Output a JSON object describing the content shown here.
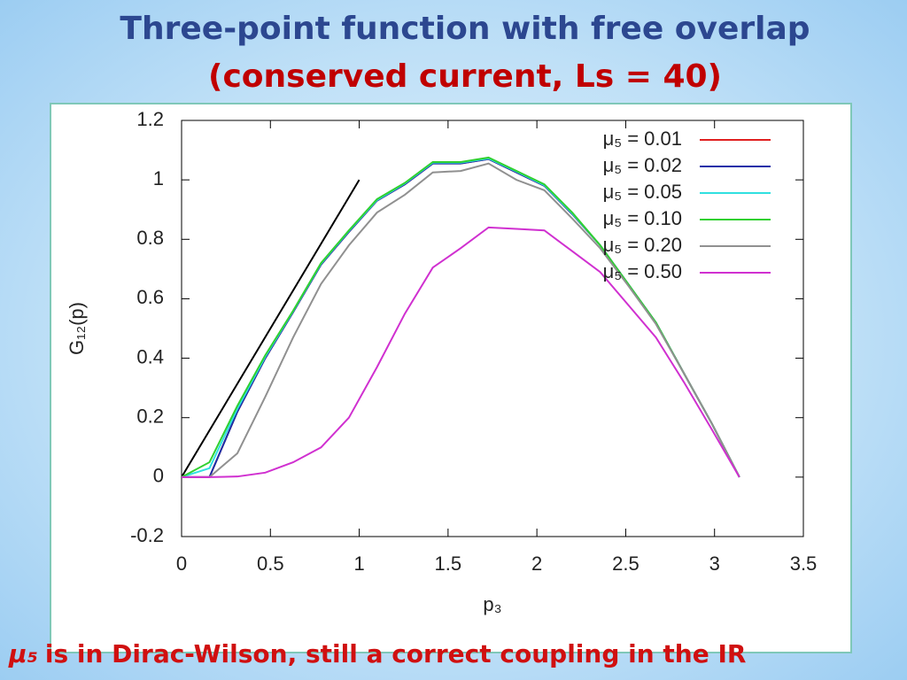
{
  "header": {
    "title": "Three-point function with free overlap",
    "subtitle": "(conserved current, Ls = 40)"
  },
  "chart_data": {
    "type": "line",
    "xlabel": "p₃",
    "ylabel": "G₁₂(p)",
    "xlim": [
      0,
      3.5
    ],
    "ylim": [
      -0.2,
      1.2
    ],
    "xticks": [
      0,
      0.5,
      1,
      1.5,
      2,
      2.5,
      3,
      3.5
    ],
    "yticks": [
      -0.2,
      0,
      0.2,
      0.4,
      0.6,
      0.8,
      1,
      1.2
    ],
    "legend": "top-right",
    "x": [
      0,
      0.157,
      0.314,
      0.471,
      0.628,
      0.785,
      0.942,
      1.1,
      1.257,
      1.414,
      1.571,
      1.728,
      1.885,
      2.042,
      2.199,
      2.356,
      2.513,
      2.67,
      2.827,
      2.985,
      3.14
    ],
    "series": [
      {
        "name": "μ₅ = 0.01",
        "color": "#e02020",
        "values": [
          0,
          0,
          0.22,
          0.4,
          0.555,
          0.715,
          0.825,
          0.93,
          0.985,
          1.055,
          1.055,
          1.07,
          1.025,
          0.98,
          0.885,
          0.78,
          0.65,
          0.52,
          0.35,
          0.18,
          0
        ]
      },
      {
        "name": "μ₅ = 0.02",
        "color": "#1a2fa8",
        "values": [
          0,
          0,
          0.22,
          0.4,
          0.555,
          0.715,
          0.825,
          0.93,
          0.985,
          1.055,
          1.055,
          1.07,
          1.025,
          0.98,
          0.885,
          0.78,
          0.65,
          0.52,
          0.35,
          0.18,
          0
        ]
      },
      {
        "name": "μ₅ = 0.05",
        "color": "#30e0e0",
        "values": [
          0,
          0.03,
          0.23,
          0.405,
          0.558,
          0.718,
          0.828,
          0.932,
          0.988,
          1.058,
          1.058,
          1.072,
          1.028,
          0.982,
          0.887,
          0.78,
          0.65,
          0.52,
          0.35,
          0.18,
          0
        ]
      },
      {
        "name": "μ₅ = 0.10",
        "color": "#30d030",
        "values": [
          0,
          0.05,
          0.24,
          0.41,
          0.56,
          0.72,
          0.83,
          0.935,
          0.99,
          1.06,
          1.06,
          1.075,
          1.03,
          0.985,
          0.89,
          0.78,
          0.65,
          0.52,
          0.35,
          0.18,
          0
        ]
      },
      {
        "name": "μ₅ = 0.20",
        "color": "#909090",
        "values": [
          0,
          0,
          0.08,
          0.27,
          0.47,
          0.65,
          0.78,
          0.89,
          0.95,
          1.025,
          1.03,
          1.055,
          1.0,
          0.965,
          0.87,
          0.77,
          0.645,
          0.515,
          0.35,
          0.18,
          0
        ]
      },
      {
        "name": "μ₅ = 0.50",
        "color": "#d030d0",
        "values": [
          0,
          0,
          0.002,
          0.015,
          0.05,
          0.1,
          0.2,
          0.37,
          0.55,
          0.705,
          0.77,
          0.84,
          0.835,
          0.83,
          0.76,
          0.69,
          0.58,
          0.47,
          0.32,
          0.16,
          0
        ]
      }
    ],
    "reference_line": {
      "color": "#000000",
      "x": [
        0,
        1
      ],
      "values": [
        0,
        1
      ]
    }
  },
  "caption": {
    "symbol": "μ₅",
    "text": "is in Dirac-Wilson, still a correct coupling in the IR"
  }
}
